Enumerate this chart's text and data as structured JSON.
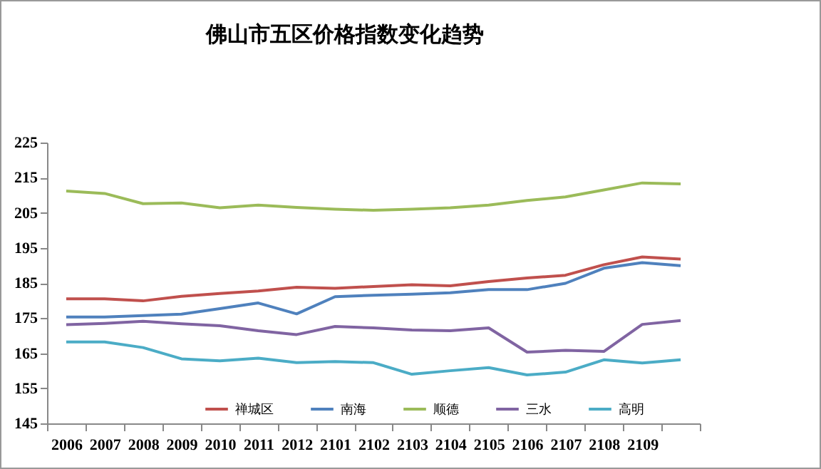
{
  "chart_data": {
    "type": "line",
    "title": "佛山市五区价格指数变化趋势",
    "categories": [
      "2006",
      "2007",
      "2008",
      "2009",
      "2010",
      "2011",
      "2012",
      "2101",
      "2102",
      "2103",
      "2104",
      "2105",
      "2106",
      "2107",
      "2108",
      "2109",
      null
    ],
    "series": [
      {
        "name": "禅城区",
        "color": "#c0504d",
        "values": [
          180.5,
          180.5,
          179.9,
          181.2,
          182,
          182.7,
          183.8,
          183.5,
          184,
          184.5,
          184.2,
          185.4,
          186.4,
          187.2,
          190.2,
          192.4,
          191.8
        ]
      },
      {
        "name": "南海",
        "color": "#4f81bd",
        "values": [
          175.3,
          175.3,
          175.7,
          176.1,
          177.7,
          179.3,
          176.2,
          181.1,
          181.5,
          181.8,
          182.2,
          183.1,
          183.1,
          184.9,
          189.2,
          190.8,
          189.9
        ]
      },
      {
        "name": "顺德",
        "color": "#9bbb59",
        "values": [
          211.2,
          210.5,
          207.6,
          207.8,
          206.4,
          207.2,
          206.5,
          206,
          205.7,
          206,
          206.4,
          207.2,
          208.5,
          209.5,
          211.5,
          213.5,
          213.2
        ]
      },
      {
        "name": "三水",
        "color": "#8064a2",
        "values": [
          173.1,
          173.5,
          174.1,
          173.4,
          172.8,
          171.4,
          170.3,
          172.6,
          172.2,
          171.6,
          171.4,
          172.2,
          165.3,
          165.8,
          165.5,
          173.2,
          174.3
        ]
      },
      {
        "name": "高明",
        "color": "#4bacc6",
        "values": [
          168.2,
          168.2,
          166.6,
          163.4,
          162.8,
          163.6,
          162.3,
          162.6,
          162.3,
          159,
          160,
          160.9,
          158.8,
          159.6,
          163.1,
          162.2,
          163.1
        ]
      }
    ],
    "ylim": [
      145,
      225
    ],
    "yticks": [
      145,
      155,
      165,
      175,
      185,
      195,
      205,
      215,
      225
    ],
    "grid": false,
    "legend": "bottom",
    "marker": "none",
    "line_style": "solid"
  }
}
